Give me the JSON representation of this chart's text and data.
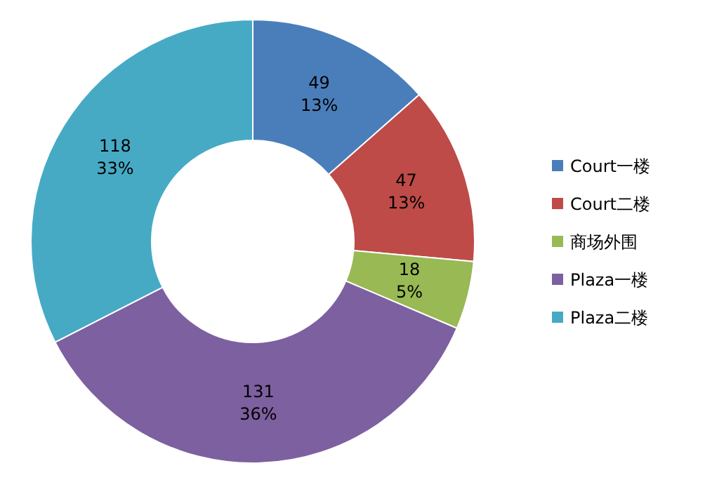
{
  "chart_data": {
    "type": "donut",
    "categories": [
      "Court一楼",
      "Court二楼",
      "商场外围",
      "Plaza一楼",
      "Plaza二楼"
    ],
    "values": [
      49,
      47,
      18,
      131,
      118
    ],
    "colors": [
      "#4a7ebb",
      "#be4b48",
      "#98b954",
      "#7d60a0",
      "#46aac5"
    ],
    "value_labels": [
      "49\n13%",
      "47\n13%",
      "18\n5%",
      "131\n36%",
      "118\n33%"
    ],
    "legend": "right"
  }
}
